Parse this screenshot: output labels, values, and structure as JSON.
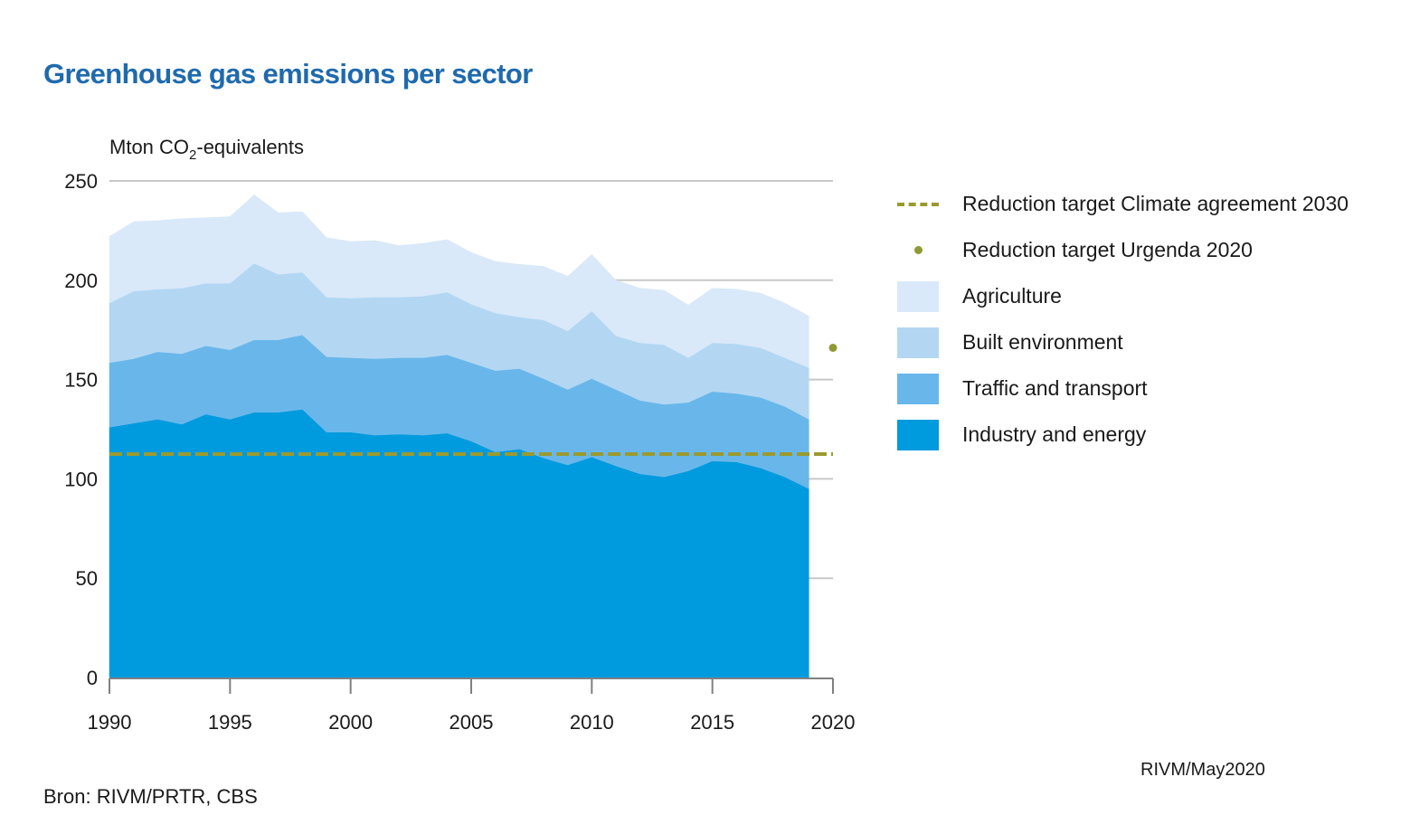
{
  "title": "Greenhouse gas emissions per sector",
  "source": "Bron: RIVM/PRTR, CBS",
  "credit": "RIVM/May2020",
  "chart_data": {
    "type": "area",
    "stacked": true,
    "title": "Greenhouse gas emissions per sector",
    "ylabel": "Mton CO",
    "ylabel_sub": "2",
    "ylabel_suffix": "-equivalents",
    "xlabel": "",
    "xlim": [
      1990,
      2020
    ],
    "ylim": [
      0,
      250
    ],
    "xticks": [
      1990,
      1995,
      2000,
      2005,
      2010,
      2015,
      2020
    ],
    "yticks": [
      0,
      50,
      100,
      150,
      200,
      250
    ],
    "grid": "horizontal",
    "legend_position": "right",
    "x": [
      1990,
      1991,
      1992,
      1993,
      1994,
      1995,
      1996,
      1997,
      1998,
      1999,
      2000,
      2001,
      2002,
      2003,
      2004,
      2005,
      2006,
      2007,
      2008,
      2009,
      2010,
      2011,
      2012,
      2013,
      2014,
      2015,
      2016,
      2017,
      2018,
      2019
    ],
    "series": [
      {
        "name": "Industry and energy",
        "color": "#009ade",
        "values": [
          126,
          128,
          130,
          127.5,
          132.5,
          130,
          133.5,
          133.5,
          135,
          123.5,
          123.5,
          122,
          122.5,
          122,
          123,
          119,
          113.5,
          115,
          110.5,
          107,
          111,
          106.5,
          102.5,
          101,
          104,
          109,
          108.5,
          105.5,
          101,
          95
        ]
      },
      {
        "name": "Traffic and transport",
        "color": "#69b7ea",
        "values": [
          32.5,
          32.5,
          34,
          35.5,
          34.5,
          35,
          36.5,
          36.5,
          37.5,
          38,
          37.5,
          38.5,
          38.5,
          39,
          39.5,
          39.5,
          41,
          40.5,
          40,
          38,
          39.5,
          38.5,
          37,
          36.5,
          34.5,
          35,
          34.5,
          35.5,
          35.5,
          35
        ]
      },
      {
        "name": "Built environment",
        "color": "#b3d7f3",
        "values": [
          30,
          34,
          31.5,
          33,
          31.5,
          33.5,
          38.5,
          33,
          31.5,
          30,
          30,
          31,
          30.5,
          31,
          31.5,
          29.5,
          29,
          26,
          29.5,
          29.5,
          34,
          27,
          29,
          30,
          22.5,
          24.5,
          25,
          25,
          24.5,
          26
        ]
      },
      {
        "name": "Agriculture",
        "color": "#d9e9f9",
        "values": [
          33.5,
          35,
          34.5,
          35,
          33,
          33.5,
          34.5,
          31,
          30.5,
          30,
          28.5,
          28.5,
          26,
          26.5,
          26.5,
          26,
          26,
          26.5,
          27,
          27.5,
          28.5,
          28,
          27.5,
          27.5,
          26.5,
          27.5,
          27.5,
          27.5,
          27.5,
          26
        ]
      }
    ],
    "reference_lines": [
      {
        "name": "Reduction target Climate agreement 2030",
        "type": "dashed-line",
        "value": 112.5,
        "color": "#9a9a2f"
      }
    ],
    "reference_points": [
      {
        "name": "Reduction target Urgenda 2020",
        "type": "dot",
        "x": 2020,
        "value": 166,
        "color": "#8f9a35"
      }
    ],
    "legend": [
      {
        "label": "Reduction target Climate agreement 2030",
        "symbol": "dash",
        "color": "#9a9a2f"
      },
      {
        "label": "Reduction target Urgenda 2020",
        "symbol": "dot",
        "color": "#8f9a35"
      },
      {
        "label": "Agriculture",
        "symbol": "swatch",
        "color": "#d9e9f9"
      },
      {
        "label": "Built environment",
        "symbol": "swatch",
        "color": "#b3d7f3"
      },
      {
        "label": "Traffic and transport",
        "symbol": "swatch",
        "color": "#69b7ea"
      },
      {
        "label": "Industry and energy",
        "symbol": "swatch",
        "color": "#009ade"
      }
    ]
  }
}
